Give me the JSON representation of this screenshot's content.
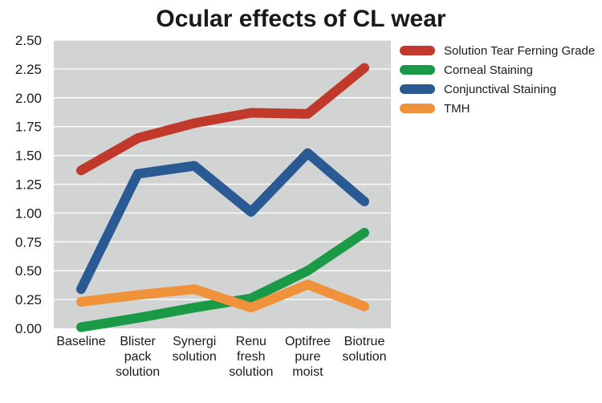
{
  "chart_data": {
    "type": "line",
    "title": "Ocular effects of CL wear",
    "xlabel": "",
    "ylabel": "",
    "ylim": [
      0,
      2.5
    ],
    "yticks": [
      "0.00",
      "0.25",
      "0.50",
      "0.75",
      "1.00",
      "1.25",
      "1.50",
      "1.75",
      "2.00",
      "2.25",
      "2.50"
    ],
    "categories": [
      [
        "Baseline"
      ],
      [
        "Blister",
        "pack",
        "solution"
      ],
      [
        "Synergi",
        "solution"
      ],
      [
        "Renu",
        "fresh",
        "solution"
      ],
      [
        "Optifree",
        "pure",
        "moist"
      ],
      [
        "Biotrue",
        "solution"
      ]
    ],
    "grid": true,
    "legend_position": "right",
    "series": [
      {
        "name": "Solution Tear Ferning Grade",
        "color": "#c0392b",
        "values": [
          1.37,
          1.65,
          1.78,
          1.87,
          1.86,
          2.26
        ]
      },
      {
        "name": "Corneal Staining",
        "color": "#1a9a47",
        "values": [
          0.01,
          0.09,
          0.18,
          0.26,
          0.5,
          0.83
        ]
      },
      {
        "name": "Conjunctival Staining",
        "color": "#2a5a94",
        "values": [
          0.34,
          1.34,
          1.41,
          1.01,
          1.52,
          1.1
        ]
      },
      {
        "name": "TMH",
        "color": "#f0923a",
        "values": [
          0.23,
          0.29,
          0.34,
          0.18,
          0.38,
          0.19
        ]
      }
    ],
    "background": "#d2d4d4"
  }
}
